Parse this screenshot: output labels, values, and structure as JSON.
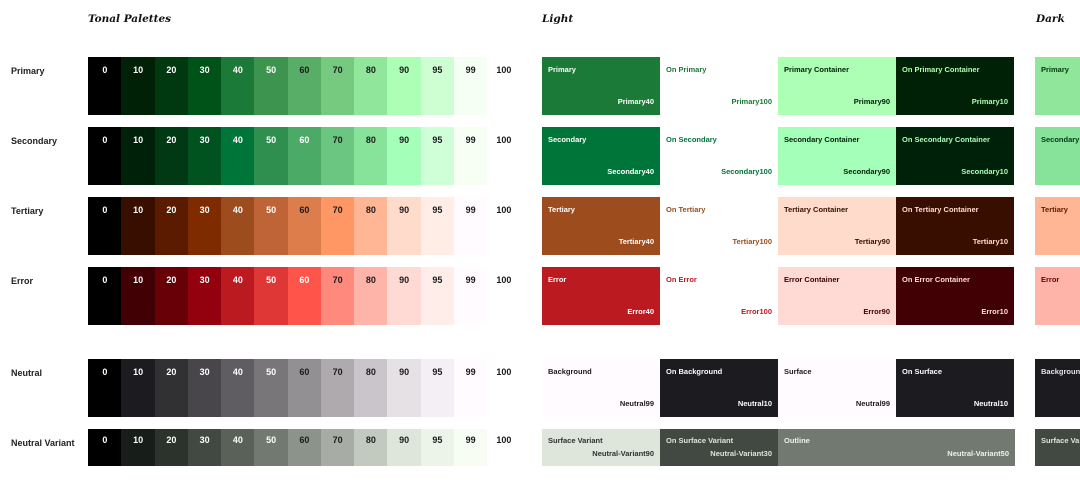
{
  "titles": {
    "tonal": "Tonal Palettes",
    "light": "Light",
    "dark": "Dark"
  },
  "palettes": [
    {
      "label": "Primary",
      "tones": [
        {
          "t": "0",
          "c": "#000000"
        },
        {
          "t": "10",
          "c": "#002106"
        },
        {
          "t": "20",
          "c": "#00390f"
        },
        {
          "t": "30",
          "c": "#005318"
        },
        {
          "t": "40",
          "c": "#1b7a37"
        },
        {
          "t": "50",
          "c": "#3c944e"
        },
        {
          "t": "60",
          "c": "#59ae67"
        },
        {
          "t": "70",
          "c": "#75ca80"
        },
        {
          "t": "80",
          "c": "#90e69a"
        },
        {
          "t": "90",
          "c": "#acffb4"
        },
        {
          "t": "95",
          "c": "#cdffd2"
        },
        {
          "t": "99",
          "c": "#f6fff4"
        },
        {
          "t": "100",
          "c": "#ffffff"
        }
      ]
    },
    {
      "label": "Secondary",
      "tones": [
        {
          "t": "0",
          "c": "#000000"
        },
        {
          "t": "10",
          "c": "#002109"
        },
        {
          "t": "20",
          "c": "#003913"
        },
        {
          "t": "30",
          "c": "#00531f"
        },
        {
          "t": "40",
          "c": "#00753a"
        },
        {
          "t": "50",
          "c": "#2e8f4f"
        },
        {
          "t": "60",
          "c": "#4caa67"
        },
        {
          "t": "70",
          "c": "#6ac680"
        },
        {
          "t": "80",
          "c": "#87e39a"
        },
        {
          "t": "90",
          "c": "#a4ffb8"
        },
        {
          "t": "95",
          "c": "#ceffd7"
        },
        {
          "t": "99",
          "c": "#f7fff4"
        },
        {
          "t": "100",
          "c": "#ffffff"
        }
      ]
    },
    {
      "label": "Tertiary",
      "tones": [
        {
          "t": "0",
          "c": "#000000"
        },
        {
          "t": "10",
          "c": "#380e00"
        },
        {
          "t": "20",
          "c": "#5b1b00"
        },
        {
          "t": "30",
          "c": "#802a00"
        },
        {
          "t": "40",
          "c": "#9d4c1e"
        },
        {
          "t": "50",
          "c": "#be6436"
        },
        {
          "t": "60",
          "c": "#de7d4c"
        },
        {
          "t": "70",
          "c": "#ff9764"
        },
        {
          "t": "80",
          "c": "#ffb694"
        },
        {
          "t": "90",
          "c": "#ffdbcc"
        },
        {
          "t": "95",
          "c": "#ffede6"
        },
        {
          "t": "99",
          "c": "#fffbff"
        },
        {
          "t": "100",
          "c": "#ffffff"
        }
      ]
    },
    {
      "label": "Error",
      "tones": [
        {
          "t": "0",
          "c": "#000000"
        },
        {
          "t": "10",
          "c": "#410003"
        },
        {
          "t": "20",
          "c": "#680007"
        },
        {
          "t": "30",
          "c": "#93000e"
        },
        {
          "t": "40",
          "c": "#ba1a20"
        },
        {
          "t": "50",
          "c": "#df3735"
        },
        {
          "t": "60",
          "c": "#ff5449"
        },
        {
          "t": "70",
          "c": "#ff897d"
        },
        {
          "t": "80",
          "c": "#ffb4aa"
        },
        {
          "t": "90",
          "c": "#ffdad5"
        },
        {
          "t": "95",
          "c": "#ffedea"
        },
        {
          "t": "99",
          "c": "#fffbff"
        },
        {
          "t": "100",
          "c": "#ffffff"
        }
      ]
    },
    {
      "label": "Neutral",
      "tones": [
        {
          "t": "0",
          "c": "#000000"
        },
        {
          "t": "10",
          "c": "#1c1b1f"
        },
        {
          "t": "20",
          "c": "#313033"
        },
        {
          "t": "30",
          "c": "#48464a"
        },
        {
          "t": "40",
          "c": "#605d62"
        },
        {
          "t": "50",
          "c": "#79767a"
        },
        {
          "t": "60",
          "c": "#939094"
        },
        {
          "t": "70",
          "c": "#aeaaae"
        },
        {
          "t": "80",
          "c": "#c9c5ca"
        },
        {
          "t": "90",
          "c": "#e6e1e5"
        },
        {
          "t": "95",
          "c": "#f4eff4"
        },
        {
          "t": "99",
          "c": "#fffbfe"
        },
        {
          "t": "100",
          "c": "#ffffff"
        }
      ]
    },
    {
      "label": "Neutral Variant",
      "tones": [
        {
          "t": "0",
          "c": "#000000"
        },
        {
          "t": "10",
          "c": "#171d18"
        },
        {
          "t": "20",
          "c": "#2c322c"
        },
        {
          "t": "30",
          "c": "#424942"
        },
        {
          "t": "40",
          "c": "#5a6159"
        },
        {
          "t": "50",
          "c": "#727971"
        },
        {
          "t": "60",
          "c": "#8c938a"
        },
        {
          "t": "70",
          "c": "#a7ada4"
        },
        {
          "t": "80",
          "c": "#c2c9bf"
        },
        {
          "t": "90",
          "c": "#dee5da"
        },
        {
          "t": "95",
          "c": "#ecf3e8"
        },
        {
          "t": "99",
          "c": "#f7fdf3"
        },
        {
          "t": "100",
          "c": "#ffffff"
        }
      ]
    }
  ],
  "light_roles": [
    [
      {
        "name": "Primary",
        "token": "Primary40",
        "bg": "#1b7a37",
        "fg": "#ffffff"
      },
      {
        "name": "On Primary",
        "token": "Primary100",
        "bg": "#ffffff",
        "fg": "#1b7a37"
      },
      {
        "name": "Primary Container",
        "token": "Primary90",
        "bg": "#acffb4",
        "fg": "#002106"
      },
      {
        "name": "On Primary Container",
        "token": "Primary10",
        "bg": "#002106",
        "fg": "#acffb4"
      }
    ],
    [
      {
        "name": "Secondary",
        "token": "Secondary40",
        "bg": "#00753a",
        "fg": "#ffffff"
      },
      {
        "name": "On Secondary",
        "token": "Secondary100",
        "bg": "#ffffff",
        "fg": "#00753a"
      },
      {
        "name": "Secondary Container",
        "token": "Secondary90",
        "bg": "#a4ffb8",
        "fg": "#002109"
      },
      {
        "name": "On Secondary Container",
        "token": "Secondary10",
        "bg": "#002109",
        "fg": "#a4ffb8"
      }
    ],
    [
      {
        "name": "Tertiary",
        "token": "Tertiary40",
        "bg": "#9d4c1e",
        "fg": "#ffffff"
      },
      {
        "name": "On Tertiary",
        "token": "Tertiary100",
        "bg": "#ffffff",
        "fg": "#9d4c1e"
      },
      {
        "name": "Tertiary Container",
        "token": "Tertiary90",
        "bg": "#ffdbcc",
        "fg": "#380e00"
      },
      {
        "name": "On Tertiary Container",
        "token": "Tertiary10",
        "bg": "#380e00",
        "fg": "#ffdbcc"
      }
    ],
    [
      {
        "name": "Error",
        "token": "Error40",
        "bg": "#ba1a20",
        "fg": "#ffffff"
      },
      {
        "name": "On Error",
        "token": "Error100",
        "bg": "#ffffff",
        "fg": "#ba1a20"
      },
      {
        "name": "Error Container",
        "token": "Error90",
        "bg": "#ffdad5",
        "fg": "#410003"
      },
      {
        "name": "On Error Container",
        "token": "Error10",
        "bg": "#410003",
        "fg": "#ffdad5"
      }
    ],
    [
      {
        "name": "Background",
        "token": "Neutral99",
        "bg": "#fffbfe",
        "fg": "#1c1b1f"
      },
      {
        "name": "On Background",
        "token": "Neutral10",
        "bg": "#1c1b1f",
        "fg": "#fffbfe"
      },
      {
        "name": "Surface",
        "token": "Neutral99",
        "bg": "#fffbfe",
        "fg": "#1c1b1f"
      },
      {
        "name": "On Surface",
        "token": "Neutral10",
        "bg": "#1c1b1f",
        "fg": "#fffbfe"
      }
    ],
    [
      {
        "name": "Surface Variant",
        "token": "Neutral-Variant90",
        "bg": "#dee5da",
        "fg": "#2c322c"
      },
      {
        "name": "On Surface Variant",
        "token": "Neutral-Variant30",
        "bg": "#424942",
        "fg": "#dee5da"
      },
      {
        "name": "Outline",
        "token": "Neutral-Variant50",
        "bg": "#727971",
        "fg": "#f0f0f0",
        "wide": true
      }
    ]
  ],
  "dark_roles": [
    {
      "name": "Primary",
      "bg": "#90e69a",
      "fg": "#00390f"
    },
    {
      "name": "Secondary",
      "bg": "#87e39a",
      "fg": "#003913"
    },
    {
      "name": "Tertiary",
      "bg": "#ffb694",
      "fg": "#5b1b00"
    },
    {
      "name": "Error",
      "bg": "#ffb4aa",
      "fg": "#680007"
    },
    {
      "name": "Background",
      "bg": "#1c1b1f",
      "fg": "#e6e1e5"
    },
    {
      "name": "Surface Va",
      "bg": "#424942",
      "fg": "#dee5da"
    }
  ]
}
